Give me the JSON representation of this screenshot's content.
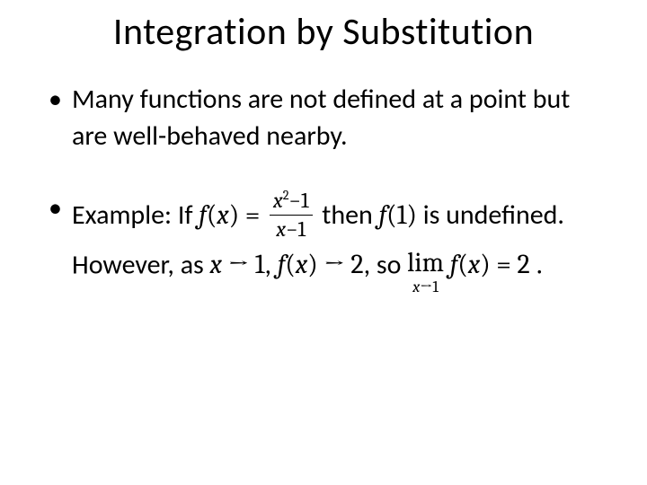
{
  "slide": {
    "title": "Integration by Substitution",
    "bullets": {
      "b1": {
        "text": "Many functions are not defined at a point but are well-behaved nearby."
      },
      "b2": {
        "prefix": "Example: If ",
        "fx": "f",
        "fx_arg_open": "(",
        "fx_var": "x",
        "fx_arg_close": ")",
        "eq": " = ",
        "frac_num_a": "x",
        "frac_num_exp": "2",
        "frac_num_b": "−1",
        "frac_den_a": "x",
        "frac_den_b": "−1",
        "mid1": " then ",
        "f1": "f",
        "f1_open": "(",
        "f1_arg": "1",
        "f1_close": ")",
        "mid2": " is undefined. However, as ",
        "xvar": "x",
        "arrow1": " → ",
        "one": "1",
        "comma": ", ",
        "fx2": "f",
        "fx2_open": "(",
        "fx2_var": "x",
        "fx2_close": ")",
        "arrow2": " → ",
        "two": "2",
        "mid3": ", so ",
        "lim_word": "lim",
        "lim_sub_x": "x",
        "lim_sub_arrow": "→",
        "lim_sub_val": "1",
        "lim_fx": "f",
        "lim_fx_open": "(",
        "lim_fx_var": "x",
        "lim_fx_close": ")",
        "lim_eq": " = ",
        "lim_val": "2",
        "period": " ."
      }
    }
  },
  "style": {
    "title_fontsize": 42,
    "body_fontsize": 30,
    "frac_fontsize": 24,
    "subscript_fontsize": 18,
    "text_color": "#000000",
    "background_color": "#ffffff",
    "font_family_body": "Calibri",
    "font_family_math": "Cambria Math"
  }
}
